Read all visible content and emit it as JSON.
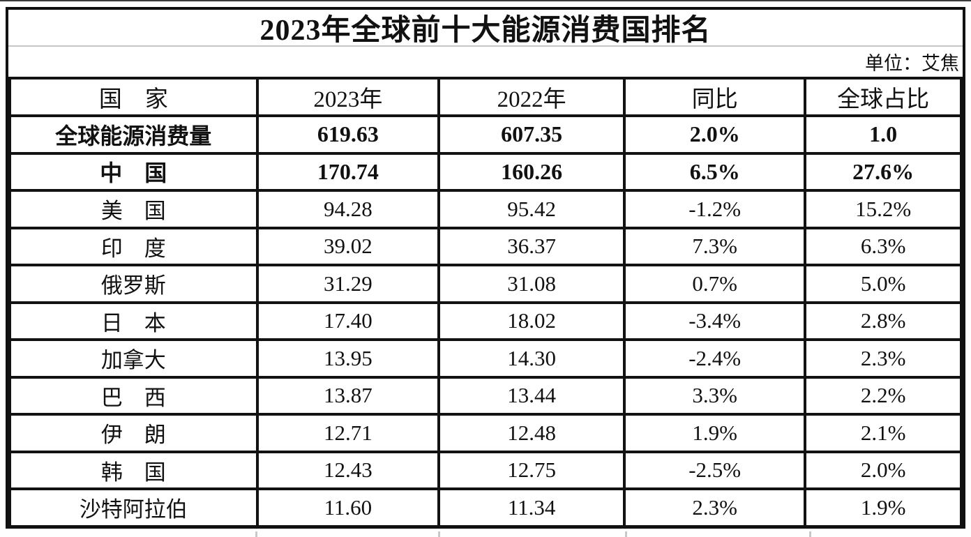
{
  "page": {
    "title": "2023年全球前十大能源消费国排名",
    "unit_label": "单位：艾焦"
  },
  "chart_data": {
    "type": "table",
    "title": "2023年全球前十大能源消费国排名",
    "unit": "艾焦",
    "columns": [
      "国　家",
      "2023年",
      "2022年",
      "同比",
      "全球占比"
    ],
    "rows": [
      {
        "name": "全球能源消费量",
        "y2023": "619.63",
        "y2022": "607.35",
        "yoy": "2.0%",
        "share": "1.0",
        "bold": true
      },
      {
        "name": "中　国",
        "y2023": "170.74",
        "y2022": "160.26",
        "yoy": "6.5%",
        "share": "27.6%",
        "bold": true
      },
      {
        "name": "美　国",
        "y2023": "94.28",
        "y2022": "95.42",
        "yoy": "-1.2%",
        "share": "15.2%",
        "bold": false
      },
      {
        "name": "印　度",
        "y2023": "39.02",
        "y2022": "36.37",
        "yoy": "7.3%",
        "share": "6.3%",
        "bold": false
      },
      {
        "name": "俄罗斯",
        "y2023": "31.29",
        "y2022": "31.08",
        "yoy": "0.7%",
        "share": "5.0%",
        "bold": false
      },
      {
        "name": "日　本",
        "y2023": "17.40",
        "y2022": "18.02",
        "yoy": "-3.4%",
        "share": "2.8%",
        "bold": false
      },
      {
        "name": "加拿大",
        "y2023": "13.95",
        "y2022": "14.30",
        "yoy": "-2.4%",
        "share": "2.3%",
        "bold": false
      },
      {
        "name": "巴　西",
        "y2023": "13.87",
        "y2022": "13.44",
        "yoy": "3.3%",
        "share": "2.2%",
        "bold": false
      },
      {
        "name": "伊　朗",
        "y2023": "12.71",
        "y2022": "12.48",
        "yoy": "1.9%",
        "share": "2.1%",
        "bold": false
      },
      {
        "name": "韩　国",
        "y2023": "12.43",
        "y2022": "12.75",
        "yoy": "-2.5%",
        "share": "2.0%",
        "bold": false
      },
      {
        "name": "沙特阿拉伯",
        "y2023": "11.60",
        "y2022": "11.34",
        "yoy": "2.3%",
        "share": "1.9%",
        "bold": false
      }
    ]
  }
}
